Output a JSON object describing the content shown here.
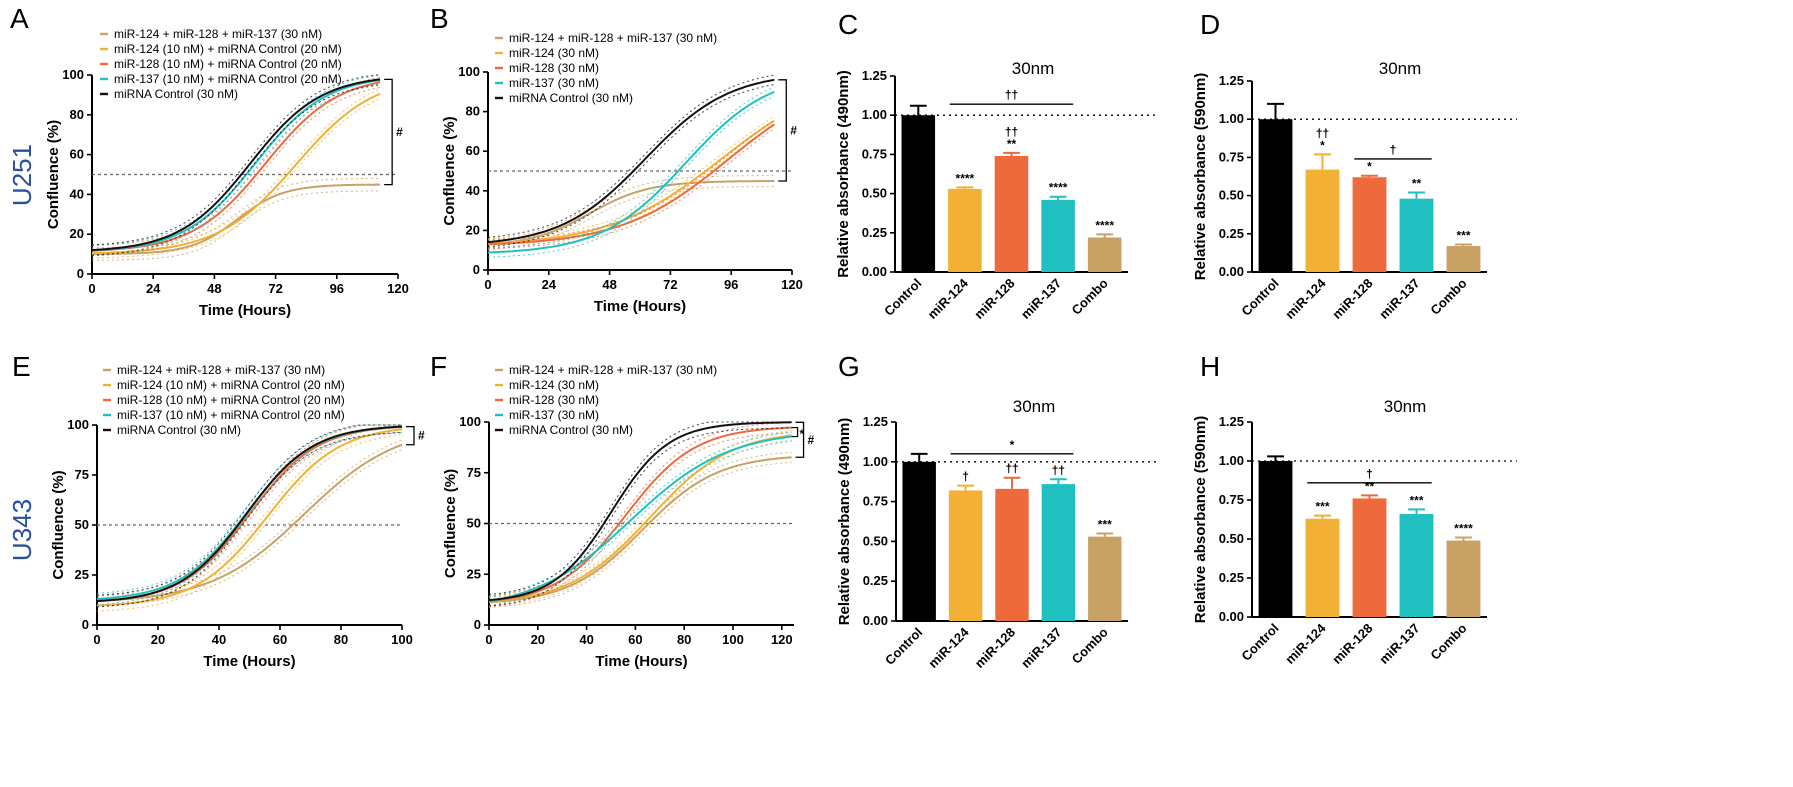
{
  "figure": {
    "row_labels": [
      "U251",
      "U343"
    ]
  },
  "chart_data": [
    {
      "id": "A",
      "type": "line",
      "letter": "A",
      "row_label": "U251",
      "xlabel": "Time (Hours)",
      "ylabel": "Confluence (%)",
      "xlim": [
        0,
        120
      ],
      "ylim": [
        0,
        100
      ],
      "xticks": [
        0,
        24,
        48,
        72,
        96,
        120
      ],
      "yticks": [
        0,
        20,
        40,
        60,
        80,
        100
      ],
      "hline": 50,
      "x_end": 113,
      "bracket_label": "#",
      "series": [
        {
          "name": "miR-124 + miR-128 + miR-137 (30 nM)",
          "color": "#c8a165",
          "start": 10,
          "end": 45,
          "mid": 57,
          "k": 0.11
        },
        {
          "name": "miR-124 (10 nM) + miRNA Control (20 nM)",
          "color": "#f2b134",
          "start": 10,
          "end": 100,
          "mid": 80,
          "k": 0.065
        },
        {
          "name": "miR-128 (10 nM) + miRNA Control (20 nM)",
          "color": "#ee6a3c",
          "start": 11,
          "end": 100,
          "mid": 68,
          "k": 0.07
        },
        {
          "name": "miR-137 (10 nM) + miRNA Control (20 nM)",
          "color": "#21c0c0",
          "start": 11,
          "end": 100,
          "mid": 64,
          "k": 0.072
        },
        {
          "name": "miRNA Control (30 nM)",
          "color": "#111111",
          "start": 11,
          "end": 100,
          "mid": 62,
          "k": 0.072
        }
      ]
    },
    {
      "id": "B",
      "type": "line",
      "letter": "B",
      "xlabel": "Time (Hours)",
      "ylabel": "Confluence (%)",
      "xlim": [
        0,
        120
      ],
      "ylim": [
        0,
        100
      ],
      "xticks": [
        0,
        24,
        48,
        72,
        96,
        120
      ],
      "yticks": [
        0,
        20,
        40,
        60,
        80,
        100
      ],
      "hline": 50,
      "x_end": 113,
      "bracket_label": "#",
      "series": [
        {
          "name": "miR-124 + miR-128 + miR-137 (30 nM)",
          "color": "#c8a165",
          "start": 12,
          "end": 45,
          "mid": 40,
          "k": 0.085
        },
        {
          "name": "miR-124 (30 nM)",
          "color": "#f2b134",
          "start": 12,
          "end": 100,
          "mid": 92,
          "k": 0.045
        },
        {
          "name": "miR-128 (30 nM)",
          "color": "#ee6a3c",
          "start": 12,
          "end": 100,
          "mid": 95,
          "k": 0.047
        },
        {
          "name": "miR-137 (30 nM)",
          "color": "#21c0c0",
          "start": 8,
          "end": 100,
          "mid": 78,
          "k": 0.06
        },
        {
          "name": "miRNA Control (30 nM)",
          "color": "#111111",
          "start": 12,
          "end": 100,
          "mid": 62,
          "k": 0.06
        }
      ]
    },
    {
      "id": "C",
      "type": "bar",
      "letter": "C",
      "title": "30nm",
      "ylabel": "Relative absorbance (490nm)",
      "ylim": [
        0,
        1.25
      ],
      "yticks": [
        0.0,
        0.25,
        0.5,
        0.75,
        1.0,
        1.25
      ],
      "categories": [
        "Control",
        "miR-124",
        "miR-128",
        "miR-137",
        "Combo"
      ],
      "values": [
        1.0,
        0.53,
        0.74,
        0.46,
        0.22
      ],
      "errors": [
        0.06,
        0.01,
        0.02,
        0.02,
        0.02
      ],
      "colors": [
        "#000000",
        "#f2b134",
        "#ee6a3c",
        "#21c0c0",
        "#c8a165"
      ],
      "labels": [
        [],
        [
          "****"
        ],
        [
          "††",
          "**"
        ],
        [
          "****"
        ],
        [
          "****"
        ]
      ],
      "comparisons": [
        {
          "from": 1,
          "to": 3,
          "y": 1.07,
          "label": "††"
        }
      ]
    },
    {
      "id": "D",
      "type": "bar",
      "letter": "D",
      "title": "30nm",
      "ylabel": "Relative absorbance (590nm)",
      "ylim": [
        0,
        1.25
      ],
      "yticks": [
        0.0,
        0.25,
        0.5,
        0.75,
        1.0,
        1.25
      ],
      "categories": [
        "Control",
        "miR-124",
        "miR-128",
        "miR-137",
        "Combo"
      ],
      "values": [
        1.0,
        0.67,
        0.62,
        0.48,
        0.17
      ],
      "errors": [
        0.1,
        0.1,
        0.01,
        0.04,
        0.01
      ],
      "colors": [
        "#000000",
        "#f2b134",
        "#ee6a3c",
        "#21c0c0",
        "#c8a165"
      ],
      "labels": [
        [],
        [
          "††",
          "*"
        ],
        [
          "*"
        ],
        [
          "**"
        ],
        [
          "***"
        ]
      ],
      "comparisons": [
        {
          "from": 2,
          "to": 3,
          "y": 0.74,
          "label": "†"
        }
      ]
    },
    {
      "id": "E",
      "type": "line",
      "letter": "E",
      "row_label": "U343",
      "xlabel": "Time (Hours)",
      "ylabel": "Confluence (%)",
      "xlim": [
        0,
        100
      ],
      "ylim": [
        0,
        100
      ],
      "xticks": [
        0,
        20,
        40,
        60,
        80,
        100
      ],
      "yticks": [
        0,
        25,
        50,
        75,
        100
      ],
      "hline": 50,
      "x_end": 100,
      "bracket_label": "#",
      "series": [
        {
          "name": "miR-124 + miR-128 + miR-137 (30 nM)",
          "color": "#c8a165",
          "start": 11,
          "end": 100,
          "mid": 68,
          "k": 0.065
        },
        {
          "name": "miR-124 (10 nM) + miRNA Control (20 nM)",
          "color": "#f2b134",
          "start": 9,
          "end": 100,
          "mid": 56,
          "k": 0.085
        },
        {
          "name": "miR-128 (10 nM) + miRNA Control (20 nM)",
          "color": "#ee6a3c",
          "start": 11,
          "end": 100,
          "mid": 50,
          "k": 0.09
        },
        {
          "name": "miR-137 (10 nM) + miRNA Control (20 nM)",
          "color": "#21c0c0",
          "start": 12,
          "end": 100,
          "mid": 49,
          "k": 0.09
        },
        {
          "name": "miRNA Control (30 nM)",
          "color": "#111111",
          "start": 11,
          "end": 100,
          "mid": 49,
          "k": 0.092
        }
      ]
    },
    {
      "id": "F",
      "type": "line",
      "letter": "F",
      "xlabel": "Time (Hours)",
      "ylabel": "Confluence (%)",
      "xlim": [
        0,
        125
      ],
      "ylim": [
        0,
        100
      ],
      "xticks": [
        0,
        20,
        40,
        60,
        80,
        100,
        120
      ],
      "yticks": [
        0,
        25,
        50,
        75,
        100
      ],
      "hline": 50,
      "x_end": 124,
      "bracket_label": "#",
      "inner_label": "*",
      "series": [
        {
          "name": "miR-124 + miR-128 + miR-137 (30 nM)",
          "color": "#c8a165",
          "start": 10,
          "end": 84,
          "mid": 63,
          "k": 0.065
        },
        {
          "name": "miR-124 (30 nM)",
          "color": "#f2b134",
          "start": 10,
          "end": 96,
          "mid": 66,
          "k": 0.06
        },
        {
          "name": "miR-128 (30 nM)",
          "color": "#ee6a3c",
          "start": 10,
          "end": 98,
          "mid": 56,
          "k": 0.07
        },
        {
          "name": "miR-137 (30 nM)",
          "color": "#21c0c0",
          "start": 7,
          "end": 96,
          "mid": 58,
          "k": 0.05
        },
        {
          "name": "miRNA Control (30 nM)",
          "color": "#111111",
          "start": 11,
          "end": 100,
          "mid": 50,
          "k": 0.085
        }
      ]
    },
    {
      "id": "G",
      "type": "bar",
      "letter": "G",
      "title": "30nm",
      "ylabel": "Relative absorbance (490nm)",
      "ylim": [
        0,
        1.25
      ],
      "yticks": [
        0.0,
        0.25,
        0.5,
        0.75,
        1.0,
        1.25
      ],
      "categories": [
        "Control",
        "miR-124",
        "miR-128",
        "miR-137",
        "Combo"
      ],
      "values": [
        1.0,
        0.82,
        0.83,
        0.86,
        0.53
      ],
      "errors": [
        0.05,
        0.03,
        0.07,
        0.03,
        0.02
      ],
      "colors": [
        "#000000",
        "#f2b134",
        "#ee6a3c",
        "#21c0c0",
        "#c8a165"
      ],
      "labels": [
        [],
        [
          "†"
        ],
        [
          "††"
        ],
        [
          "††"
        ],
        [
          "***"
        ]
      ],
      "comparisons": [
        {
          "from": 1,
          "to": 3,
          "y": 1.05,
          "label": "*"
        }
      ]
    },
    {
      "id": "H",
      "type": "bar",
      "letter": "H",
      "title": "30nm",
      "ylabel": "Relative absorbance (590nm)",
      "ylim": [
        0,
        1.25
      ],
      "yticks": [
        0.0,
        0.25,
        0.5,
        0.75,
        1.0,
        1.25
      ],
      "categories": [
        "Control",
        "miR-124",
        "miR-128",
        "miR-137",
        "Combo"
      ],
      "values": [
        1.0,
        0.63,
        0.76,
        0.66,
        0.49
      ],
      "errors": [
        0.03,
        0.02,
        0.02,
        0.03,
        0.02
      ],
      "colors": [
        "#000000",
        "#f2b134",
        "#ee6a3c",
        "#21c0c0",
        "#c8a165"
      ],
      "labels": [
        [],
        [
          "***"
        ],
        [
          "**"
        ],
        [
          "***"
        ],
        [
          "****"
        ]
      ],
      "comparisons": [
        {
          "from": 1,
          "to": 3,
          "y": 0.86,
          "label": "†"
        }
      ]
    }
  ]
}
